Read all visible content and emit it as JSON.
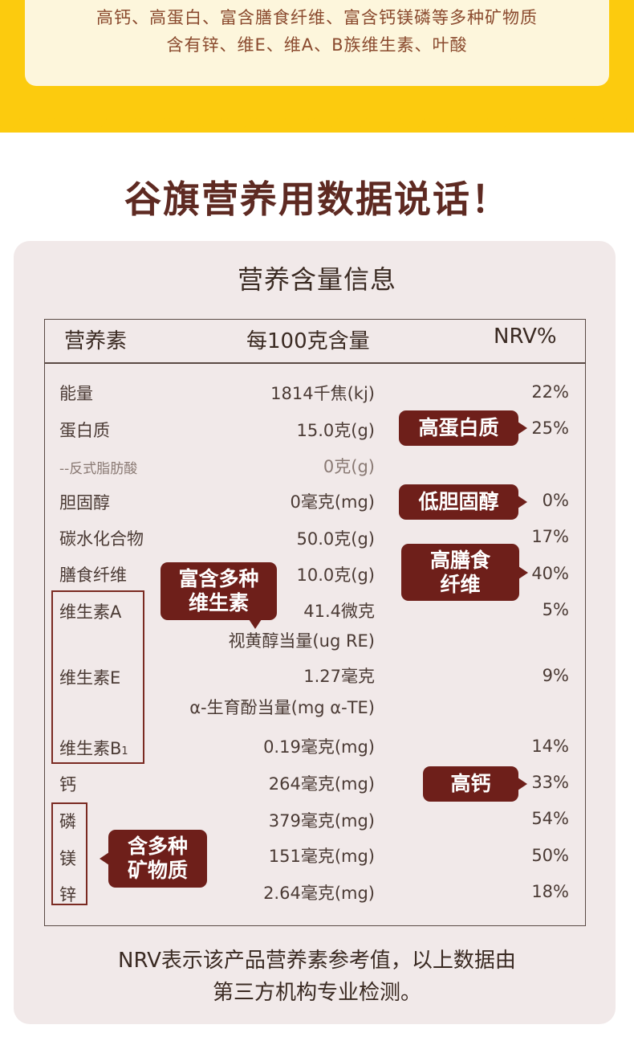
{
  "top": {
    "line1": "高钙、高蛋白、富含膳食纤维、富含钙镁磷等多种矿物质",
    "line2": "含有锌、维E、维A、B族维生素、叶酸"
  },
  "headline": "谷旗营养用数据说话！",
  "panel_title": "营养含量信息",
  "table": {
    "headers": {
      "name": "营养素",
      "amount": "每100克含量",
      "nrv": "NRV%"
    },
    "rows": [
      {
        "name": "能量",
        "amount": "1814千焦(kj)",
        "nrv": "22%"
      },
      {
        "name": "蛋白质",
        "amount": "15.0克(g)",
        "nrv": "25%"
      },
      {
        "name": "--反式脂肪酸",
        "amount": "0克(g)",
        "nrv": ""
      },
      {
        "name": "胆固醇",
        "amount": "0毫克(mg)",
        "nrv": "0%"
      },
      {
        "name": "碳水化合物",
        "amount": "50.0克(g)",
        "nrv": "17%"
      },
      {
        "name": "膳食纤维",
        "amount": "10.0克(g)",
        "nrv": "40%"
      },
      {
        "name": "维生素A",
        "amount": "41.4微克",
        "amount_line2": "视黄醇当量(ug RE)",
        "nrv": "5%"
      },
      {
        "name": "维生素E",
        "amount": "1.27毫克",
        "amount_line2": "α-生育酚当量(mg α-TE)",
        "nrv": "9%"
      },
      {
        "name": "维生素B",
        "name_sub": "1",
        "amount": "0.19毫克(mg)",
        "nrv": "14%"
      },
      {
        "name": "钙",
        "amount": "264毫克(mg)",
        "nrv": "33%"
      },
      {
        "name": "磷",
        "amount": "379毫克(mg)",
        "nrv": "54%"
      },
      {
        "name": "镁",
        "amount": "151毫克(mg)",
        "nrv": "50%"
      },
      {
        "name": "锌",
        "amount": "2.64毫克(mg)",
        "nrv": "18%"
      }
    ]
  },
  "tags": {
    "high_protein": "高蛋白质",
    "low_cholesterol": "低胆固醇",
    "high_fiber_1": "高膳食",
    "high_fiber_2": "纤维",
    "vitamins_1": "富含多种",
    "vitamins_2": "维生素",
    "high_calcium": "高钙",
    "minerals_1": "含多种",
    "minerals_2": "矿物质"
  },
  "footnote": {
    "line1": "NRV表示该产品营养素参考值，以上数据由",
    "line2": "第三方机构专业检测。"
  },
  "colors": {
    "yellow": "#fccb0e",
    "brown": "#6e1f1a",
    "panel": "#f1e9e9",
    "headline": "#5e2a22"
  }
}
